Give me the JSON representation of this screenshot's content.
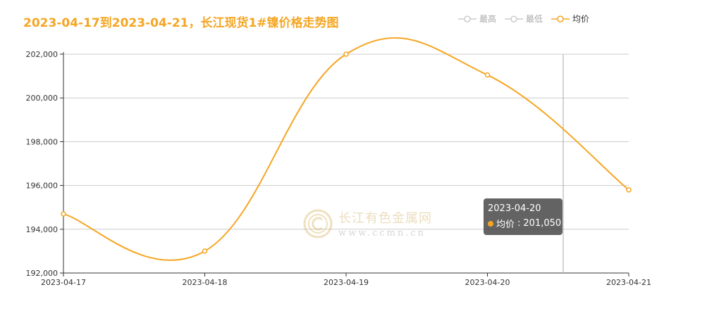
{
  "title": "2023-04-17到2023-04-21，长江现货1#镍价格走势图",
  "legend": [
    {
      "label": "最高",
      "active": false
    },
    {
      "label": "最低",
      "active": false
    },
    {
      "label": "均价",
      "active": true
    }
  ],
  "watermark": {
    "main": "长江有色金属网",
    "sub": "www.ccmn.cn"
  },
  "tooltip": {
    "date": "2023-04-20",
    "series": "均价",
    "value": "201,050"
  },
  "colors": {
    "accent": "#f5a623",
    "grid": "#cccccc",
    "axis": "#333333"
  },
  "chart_data": {
    "type": "line",
    "categories": [
      "2023-04-17",
      "2023-04-18",
      "2023-04-19",
      "2023-04-20",
      "2023-04-21"
    ],
    "series": [
      {
        "name": "均价",
        "values": [
          194700,
          193000,
          202000,
          201050,
          195800
        ]
      }
    ],
    "ylim": [
      192000,
      202000
    ],
    "yticks": [
      "192,000",
      "194,000",
      "196,000",
      "198,000",
      "200,000",
      "202,000"
    ],
    "grid": true,
    "legend_position": "top-right"
  }
}
